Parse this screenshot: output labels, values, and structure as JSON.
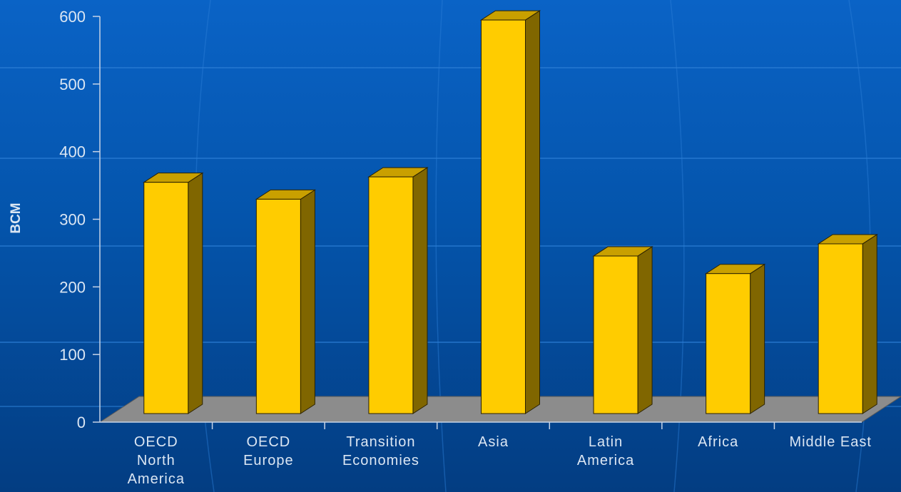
{
  "chart_data": {
    "type": "bar",
    "title": "",
    "xlabel": "",
    "ylabel": "BCM",
    "ylim": [
      0,
      600
    ],
    "yticks": [
      "0",
      "100",
      "200",
      "300",
      "400",
      "500",
      "600"
    ],
    "categories": [
      [
        "OECD",
        "North",
        "America"
      ],
      [
        "OECD",
        "Europe"
      ],
      [
        "Transition",
        "Economies"
      ],
      [
        "Asia"
      ],
      [
        "Latin",
        "America"
      ],
      [
        "Africa"
      ],
      [
        "Middle East"
      ]
    ],
    "values": [
      342,
      317,
      350,
      582,
      233,
      207,
      251
    ],
    "grid": "horizontal",
    "style": "3d-column"
  },
  "colors": {
    "bar_front": "#ffcc00",
    "bar_top": "#c9a000",
    "bar_side": "#806600",
    "floor": "#8c8c8c",
    "axis": "#c7d3e6",
    "grid": "#3b86d6"
  }
}
